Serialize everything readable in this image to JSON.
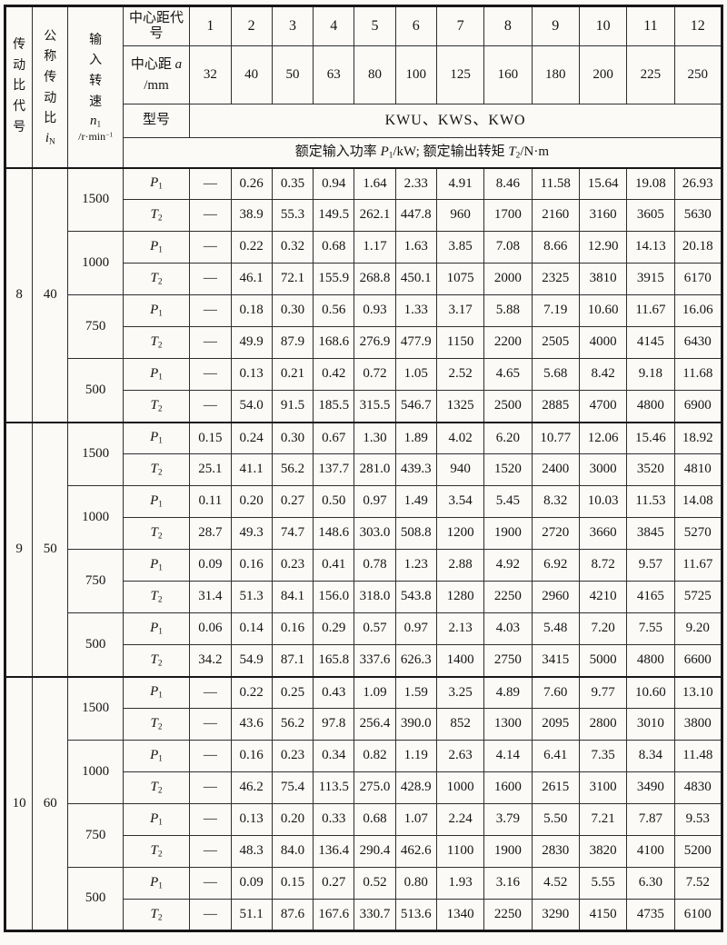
{
  "table": {
    "headers": {
      "ratio_code": "传动比代号",
      "nominal_ratio": {
        "label": "公称传动比",
        "sym": "i",
        "sub": "N"
      },
      "input_speed": {
        "label": "输入转速",
        "sym": "n",
        "sub": "1",
        "unit": "/r·min",
        "unit_sup": "−1"
      },
      "center_code_label": "中心距代号",
      "center_dist": {
        "label": "中心距",
        "sym": "a",
        "unit": "/mm"
      },
      "model_label": "型号",
      "model_value": "KWU、KWS、KWO",
      "rating": {
        "seg1": "额定输入功率 ",
        "p_sym": "P",
        "p_sub": "1",
        "seg2": "/kW; 额定输出转矩 ",
        "t_sym": "T",
        "t_sub": "2",
        "seg3": "/N·m"
      },
      "center_codes": [
        "1",
        "2",
        "3",
        "4",
        "5",
        "6",
        "7",
        "8",
        "9",
        "10",
        "11",
        "12"
      ],
      "center_distances": [
        "32",
        "40",
        "50",
        "63",
        "80",
        "100",
        "125",
        "160",
        "180",
        "200",
        "225",
        "250"
      ]
    },
    "row_symbols": {
      "p1": {
        "sym": "P",
        "sub": "1"
      },
      "t2": {
        "sym": "T",
        "sub": "2"
      }
    },
    "groups": [
      {
        "code": "8",
        "nominal_ratio": "40",
        "speeds": [
          {
            "rpm": "1500",
            "p1": [
              "—",
              "0.26",
              "0.35",
              "0.94",
              "1.64",
              "2.33",
              "4.91",
              "8.46",
              "11.58",
              "15.64",
              "19.08",
              "26.93"
            ],
            "t2": [
              "—",
              "38.9",
              "55.3",
              "149.5",
              "262.1",
              "447.8",
              "960",
              "1700",
              "2160",
              "3160",
              "3605",
              "5630"
            ]
          },
          {
            "rpm": "1000",
            "p1": [
              "—",
              "0.22",
              "0.32",
              "0.68",
              "1.17",
              "1.63",
              "3.85",
              "7.08",
              "8.66",
              "12.90",
              "14.13",
              "20.18"
            ],
            "t2": [
              "—",
              "46.1",
              "72.1",
              "155.9",
              "268.8",
              "450.1",
              "1075",
              "2000",
              "2325",
              "3810",
              "3915",
              "6170"
            ]
          },
          {
            "rpm": "750",
            "p1": [
              "—",
              "0.18",
              "0.30",
              "0.56",
              "0.93",
              "1.33",
              "3.17",
              "5.88",
              "7.19",
              "10.60",
              "11.67",
              "16.06"
            ],
            "t2": [
              "—",
              "49.9",
              "87.9",
              "168.6",
              "276.9",
              "477.9",
              "1150",
              "2200",
              "2505",
              "4000",
              "4145",
              "6430"
            ]
          },
          {
            "rpm": "500",
            "p1": [
              "—",
              "0.13",
              "0.21",
              "0.42",
              "0.72",
              "1.05",
              "2.52",
              "4.65",
              "5.68",
              "8.42",
              "9.18",
              "11.68"
            ],
            "t2": [
              "—",
              "54.0",
              "91.5",
              "185.5",
              "315.5",
              "546.7",
              "1325",
              "2500",
              "2885",
              "4700",
              "4800",
              "6900"
            ]
          }
        ]
      },
      {
        "code": "9",
        "nominal_ratio": "50",
        "speeds": [
          {
            "rpm": "1500",
            "p1": [
              "0.15",
              "0.24",
              "0.30",
              "0.67",
              "1.30",
              "1.89",
              "4.02",
              "6.20",
              "10.77",
              "12.06",
              "15.46",
              "18.92"
            ],
            "t2": [
              "25.1",
              "41.1",
              "56.2",
              "137.7",
              "281.0",
              "439.3",
              "940",
              "1520",
              "2400",
              "3000",
              "3520",
              "4810"
            ]
          },
          {
            "rpm": "1000",
            "p1": [
              "0.11",
              "0.20",
              "0.27",
              "0.50",
              "0.97",
              "1.49",
              "3.54",
              "5.45",
              "8.32",
              "10.03",
              "11.53",
              "14.08"
            ],
            "t2": [
              "28.7",
              "49.3",
              "74.7",
              "148.6",
              "303.0",
              "508.8",
              "1200",
              "1900",
              "2720",
              "3660",
              "3845",
              "5270"
            ]
          },
          {
            "rpm": "750",
            "p1": [
              "0.09",
              "0.16",
              "0.23",
              "0.41",
              "0.78",
              "1.23",
              "2.88",
              "4.92",
              "6.92",
              "8.72",
              "9.57",
              "11.67"
            ],
            "t2": [
              "31.4",
              "51.3",
              "84.1",
              "156.0",
              "318.0",
              "543.8",
              "1280",
              "2250",
              "2960",
              "4210",
              "4165",
              "5725"
            ]
          },
          {
            "rpm": "500",
            "p1": [
              "0.06",
              "0.14",
              "0.16",
              "0.29",
              "0.57",
              "0.97",
              "2.13",
              "4.03",
              "5.48",
              "7.20",
              "7.55",
              "9.20"
            ],
            "t2": [
              "34.2",
              "54.9",
              "87.1",
              "165.8",
              "337.6",
              "626.3",
              "1400",
              "2750",
              "3415",
              "5000",
              "4800",
              "6600"
            ]
          }
        ]
      },
      {
        "code": "10",
        "nominal_ratio": "60",
        "speeds": [
          {
            "rpm": "1500",
            "p1": [
              "—",
              "0.22",
              "0.25",
              "0.43",
              "1.09",
              "1.59",
              "3.25",
              "4.89",
              "7.60",
              "9.77",
              "10.60",
              "13.10"
            ],
            "t2": [
              "—",
              "43.6",
              "56.2",
              "97.8",
              "256.4",
              "390.0",
              "852",
              "1300",
              "2095",
              "2800",
              "3010",
              "3800"
            ]
          },
          {
            "rpm": "1000",
            "p1": [
              "—",
              "0.16",
              "0.23",
              "0.34",
              "0.82",
              "1.19",
              "2.63",
              "4.14",
              "6.41",
              "7.35",
              "8.34",
              "11.48"
            ],
            "t2": [
              "—",
              "46.2",
              "75.4",
              "113.5",
              "275.0",
              "428.9",
              "1000",
              "1600",
              "2615",
              "3100",
              "3490",
              "4830"
            ]
          },
          {
            "rpm": "750",
            "p1": [
              "—",
              "0.13",
              "0.20",
              "0.33",
              "0.68",
              "1.07",
              "2.24",
              "3.79",
              "5.50",
              "7.21",
              "7.87",
              "9.53"
            ],
            "t2": [
              "—",
              "48.3",
              "84.0",
              "136.4",
              "290.4",
              "462.6",
              "1100",
              "1900",
              "2830",
              "3820",
              "4100",
              "5200"
            ]
          },
          {
            "rpm": "500",
            "p1": [
              "—",
              "0.09",
              "0.15",
              "0.27",
              "0.52",
              "0.80",
              "1.93",
              "3.16",
              "4.52",
              "5.55",
              "6.30",
              "7.52"
            ],
            "t2": [
              "—",
              "51.1",
              "87.6",
              "167.6",
              "330.7",
              "513.6",
              "1340",
              "2250",
              "3290",
              "4150",
              "4735",
              "6100"
            ]
          }
        ]
      }
    ]
  }
}
